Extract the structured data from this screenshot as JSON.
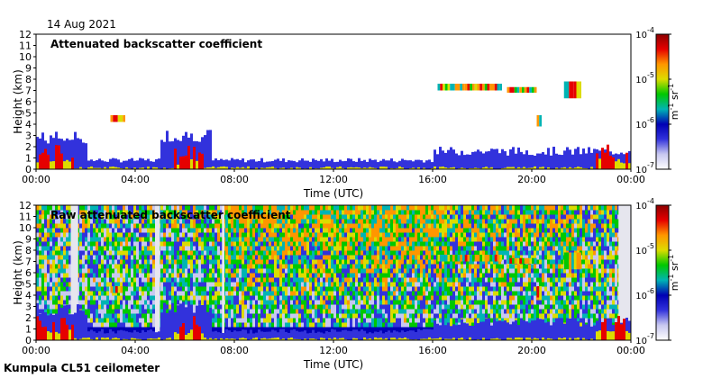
{
  "date_label": "14 Aug 2021",
  "footer_label": "Kumpula CL51 ceilometer",
  "colors": {
    "colormap": [
      "#ffffff",
      "#c8c8f0",
      "#3232dc",
      "#0000b4",
      "#00b4b4",
      "#00c800",
      "#dcdc00",
      "#ff9600",
      "#e60000",
      "#8c0000"
    ]
  },
  "chart_data": [
    {
      "type": "heatmap",
      "title": "Attenuated backscatter coefficient",
      "xlabel": "Time (UTC)",
      "ylabel": "Height (km)",
      "xlim_hours": [
        0,
        24
      ],
      "ylim_km": [
        0,
        12
      ],
      "x_tick_labels": [
        "00:00",
        "04:00",
        "08:00",
        "12:00",
        "16:00",
        "20:00",
        "00:00"
      ],
      "y_tick_labels": [
        "0",
        "1",
        "2",
        "3",
        "4",
        "5",
        "6",
        "7",
        "8",
        "9",
        "10",
        "11",
        "12"
      ],
      "colorbar": {
        "tick_labels": [
          "10",
          "10",
          "10",
          "10"
        ],
        "tick_exponents": [
          "-7",
          "-6",
          "-5",
          "-4"
        ],
        "unit_label": "m",
        "unit_exp1": "-1",
        "unit_mid": " sr",
        "unit_exp2": "-1"
      }
    },
    {
      "type": "heatmap",
      "title": "Raw attenuated backscatter coefficient",
      "xlabel": "Time (UTC)",
      "ylabel": "Height (km)",
      "xlim_hours": [
        0,
        24
      ],
      "ylim_km": [
        0,
        12
      ],
      "x_tick_labels": [
        "00:00",
        "04:00",
        "08:00",
        "12:00",
        "16:00",
        "20:00",
        "00:00"
      ],
      "y_tick_labels": [
        "0",
        "1",
        "2",
        "3",
        "4",
        "5",
        "6",
        "7",
        "8",
        "9",
        "10",
        "11",
        "12"
      ],
      "colorbar": {
        "tick_labels": [
          "10",
          "10",
          "10",
          "10"
        ],
        "tick_exponents": [
          "-7",
          "-6",
          "-5",
          "-4"
        ],
        "unit_label": "m",
        "unit_exp1": "-1",
        "unit_mid": " sr",
        "unit_exp2": "-1"
      }
    }
  ]
}
